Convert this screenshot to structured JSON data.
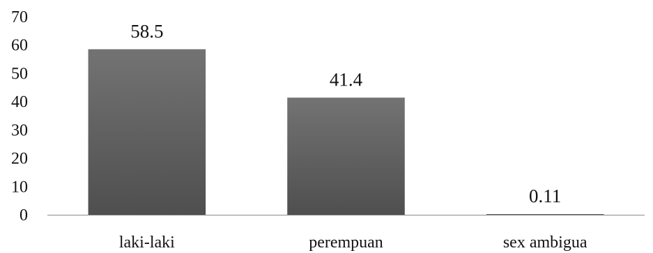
{
  "chart_data": {
    "type": "bar",
    "categories": [
      "laki-laki",
      "perempuan",
      "sex ambigua"
    ],
    "values": [
      58.5,
      41.4,
      0.11
    ],
    "data_labels": [
      "58.5",
      "41.4",
      "0.11"
    ],
    "ylim": [
      0,
      70
    ],
    "yticks": [
      0,
      10,
      20,
      30,
      40,
      50,
      60,
      70
    ],
    "title": "",
    "xlabel": "",
    "ylabel": "",
    "grid": false,
    "legend": "none",
    "colors": {
      "bar_top": "#737373",
      "bar_bottom": "#4f4f4f",
      "axis": "#8a8a8a"
    }
  }
}
